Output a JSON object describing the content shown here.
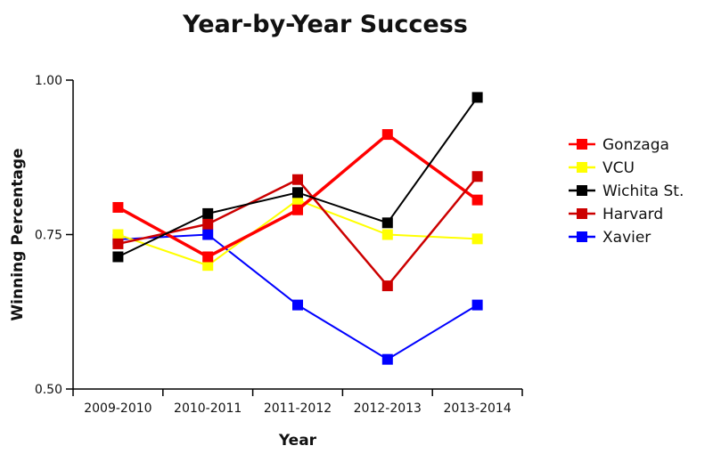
{
  "chart_data": {
    "type": "line",
    "title": "Year-by-Year Success",
    "xlabel": "Year",
    "ylabel": "Winning Percentage",
    "ylim": [
      0.5,
      1.0
    ],
    "yticks": [
      "0.50",
      "0.75",
      "1.00"
    ],
    "categories": [
      "2009-2010",
      "2010-2011",
      "2011-2012",
      "2012-2013",
      "2013-2014"
    ],
    "legend_position": "right",
    "grid": false,
    "series": [
      {
        "name": "Gonzaga",
        "color": "#ff0000",
        "values": [
          0.794,
          0.714,
          0.79,
          0.912,
          0.806
        ]
      },
      {
        "name": "VCU",
        "color": "#ffff00",
        "values": [
          0.75,
          0.7,
          0.806,
          0.75,
          0.743
        ]
      },
      {
        "name": "Wichita St.",
        "color": "#000000",
        "values": [
          0.714,
          0.784,
          0.818,
          0.769,
          0.972
        ]
      },
      {
        "name": "Harvard",
        "color": "#cc0000",
        "values": [
          0.735,
          0.767,
          0.839,
          0.667,
          0.844
        ]
      },
      {
        "name": "Xavier",
        "color": "#0000ff",
        "values": [
          0.742,
          0.75,
          0.636,
          0.548,
          0.636
        ]
      }
    ]
  }
}
